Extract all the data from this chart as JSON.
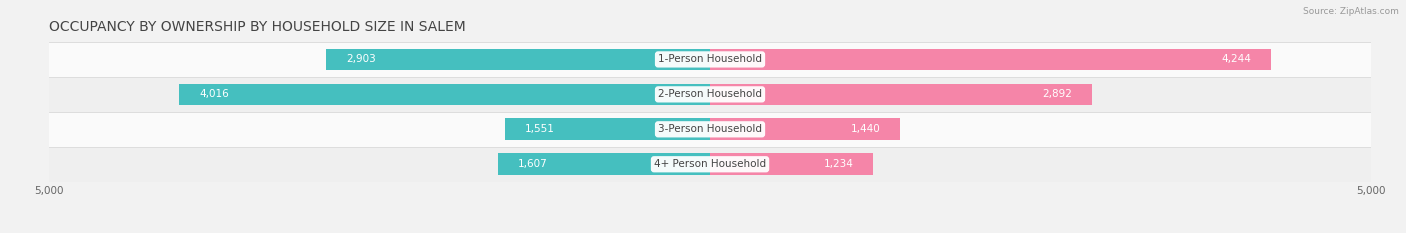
{
  "title": "OCCUPANCY BY OWNERSHIP BY HOUSEHOLD SIZE IN SALEM",
  "source": "Source: ZipAtlas.com",
  "categories": [
    "1-Person Household",
    "2-Person Household",
    "3-Person Household",
    "4+ Person Household"
  ],
  "owner_values": [
    2903,
    4016,
    1551,
    1607
  ],
  "renter_values": [
    4244,
    2892,
    1440,
    1234
  ],
  "max_val": 5000,
  "owner_color": "#45BFBF",
  "renter_color": "#F585A8",
  "owner_color_dark": "#3AAFAF",
  "renter_color_dark": "#F07090",
  "bg_color": "#F2F2F2",
  "row_colors": [
    "#FAFAFA",
    "#EFEFEF",
    "#FAFAFA",
    "#EFEFEF"
  ],
  "divider_color": "#DDDDDD",
  "title_fontsize": 10,
  "label_fontsize": 7.5,
  "axis_fontsize": 7.5,
  "legend_fontsize": 7.5,
  "bar_height": 0.62
}
